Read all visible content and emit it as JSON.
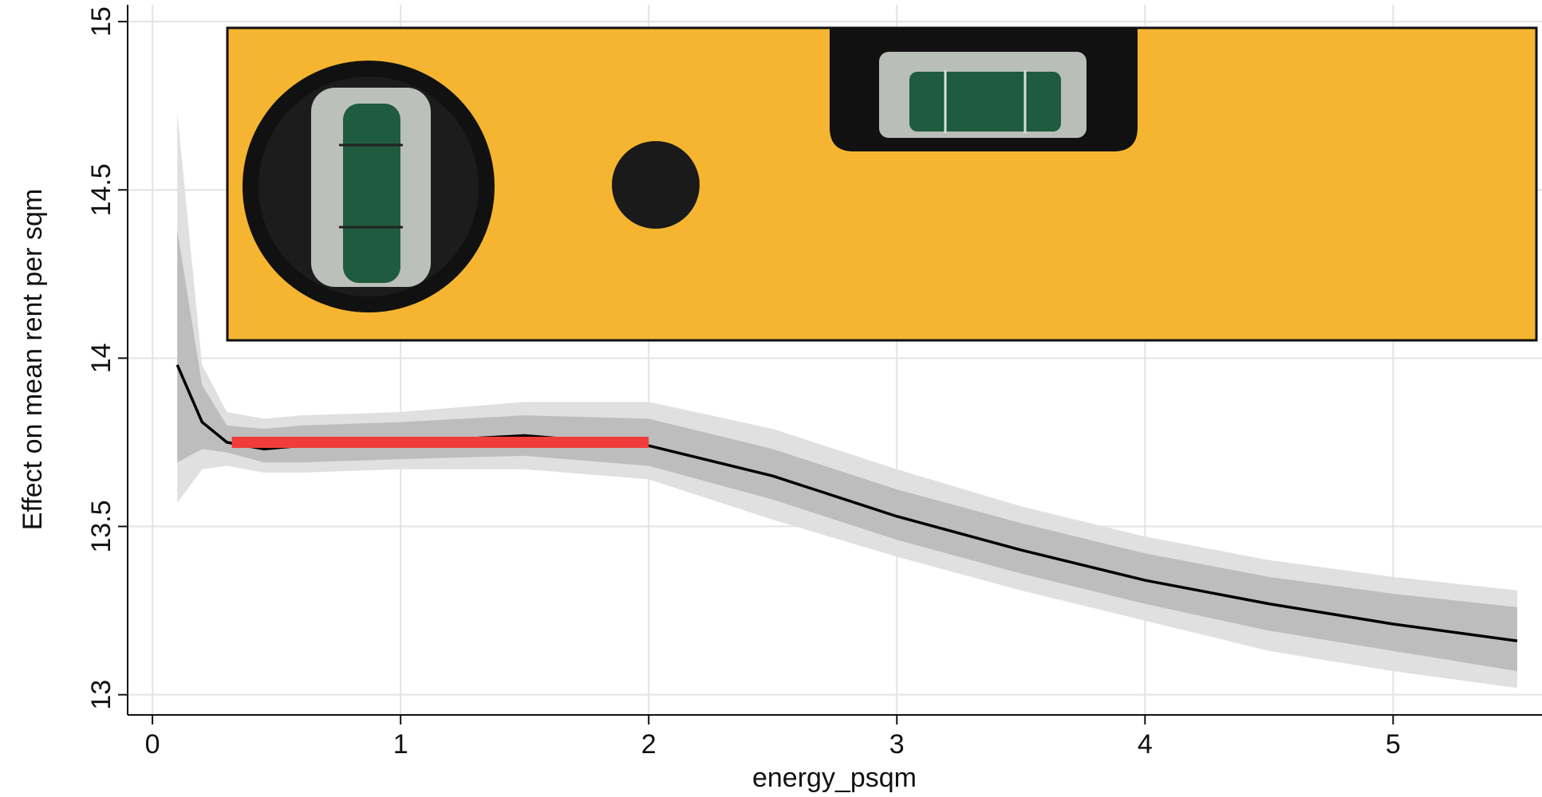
{
  "chart_data": {
    "type": "line",
    "x_label": "energy_psqm",
    "y_label": "Effect on mean rent per sqm",
    "x": [
      0.1,
      0.2,
      0.3,
      0.45,
      0.6,
      1.0,
      1.5,
      2.0,
      2.5,
      3.0,
      3.5,
      4.0,
      4.5,
      5.0,
      5.5
    ],
    "line": {
      "color": "#000000",
      "values": [
        13.98,
        13.81,
        13.75,
        13.73,
        13.74,
        13.75,
        13.77,
        13.74,
        13.65,
        13.53,
        13.43,
        13.34,
        13.27,
        13.21,
        13.16
      ]
    },
    "bands": [
      {
        "color": "#e0e0e0",
        "upper": [
          14.73,
          13.98,
          13.84,
          13.82,
          13.83,
          13.84,
          13.87,
          13.87,
          13.79,
          13.67,
          13.56,
          13.47,
          13.4,
          13.35,
          13.31
        ],
        "lower": [
          13.57,
          13.67,
          13.68,
          13.66,
          13.66,
          13.67,
          13.67,
          13.64,
          13.52,
          13.41,
          13.31,
          13.22,
          13.13,
          13.07,
          13.02
        ]
      },
      {
        "color": "#bdbdbd",
        "upper": [
          14.38,
          13.92,
          13.8,
          13.79,
          13.8,
          13.81,
          13.83,
          13.82,
          13.73,
          13.61,
          13.51,
          13.42,
          13.35,
          13.3,
          13.26
        ],
        "lower": [
          13.69,
          13.73,
          13.72,
          13.69,
          13.69,
          13.7,
          13.71,
          13.68,
          13.58,
          13.46,
          13.36,
          13.27,
          13.19,
          13.13,
          13.07
        ]
      }
    ],
    "reference_line": {
      "x": [
        0.32,
        2.0
      ],
      "y": 13.75,
      "color": "#f23b3b"
    },
    "xlim": [
      -0.1,
      5.6
    ],
    "ylim": [
      12.94,
      15.05
    ],
    "xticks": [
      0,
      1,
      2,
      3,
      4,
      5
    ],
    "yticks": [
      13,
      13.5,
      14,
      14.5,
      15
    ],
    "grid": true
  }
}
